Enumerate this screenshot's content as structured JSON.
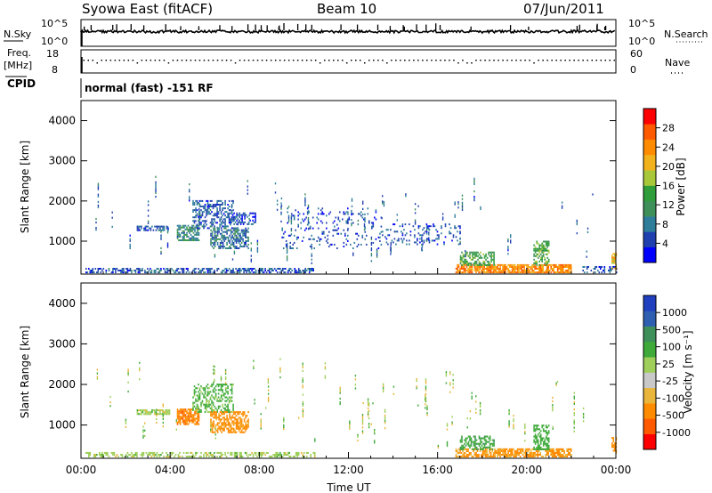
{
  "header": {
    "station": "Syowa East (fitACF)",
    "beam": "Beam 10",
    "date": "07/Jun/2011"
  },
  "top_strip": {
    "left_label": "N.Sky",
    "right_label": "N.Search",
    "left_ticks": [
      "10^5",
      "10^0"
    ],
    "right_ticks": [
      "10^5",
      "10^0"
    ]
  },
  "freq_strip": {
    "left_label_top": "Freq.",
    "left_label_bottom": "[MHz]",
    "left_ticks": [
      "18",
      "8"
    ],
    "right_label": "Nave",
    "right_ticks": [
      "60",
      "0"
    ]
  },
  "cpid": {
    "label": "CPID",
    "mode": "normal (fast) -151 RF"
  },
  "x_axis": {
    "label": "Time UT",
    "ticks": [
      "00:00",
      "04:00",
      "08:00",
      "12:00",
      "16:00",
      "20:00",
      "00:00"
    ]
  },
  "colors": {
    "power_scale": [
      "#0000ff",
      "#2040b0",
      "#2e7d9a",
      "#3f8f5a",
      "#2f9e3a",
      "#a8c83a",
      "#f2b21d",
      "#ff8c00",
      "#ff5a00",
      "#ff0000"
    ],
    "velocity_scale": [
      "#ff0000",
      "#ff5a00",
      "#ff8c00",
      "#e9b53a",
      "#c8c8c8",
      "#9fcf5a",
      "#3faa3a",
      "#3f8f5a",
      "#2e5fb0",
      "#2040c0"
    ]
  },
  "chart_data": [
    {
      "type": "heatmap",
      "name": "power",
      "ylabel": "Slant Range [km]",
      "xlabel": "",
      "x_range_hours": [
        0,
        24
      ],
      "ylim": [
        180,
        4500
      ],
      "y_ticks": [
        1000,
        2000,
        3000,
        4000
      ],
      "colorbar": {
        "label": "Power [dB]",
        "min": 0,
        "max": 32,
        "ticks": [
          "4",
          "8",
          "12",
          "16",
          "20",
          "24",
          "28"
        ]
      },
      "regions": [
        {
          "t0": 0.2,
          "t1": 10.5,
          "r0": 200,
          "r1": 320,
          "value": 6,
          "density": 0.55
        },
        {
          "t0": 2.5,
          "t1": 4.0,
          "r0": 1250,
          "r1": 1350,
          "value": 6,
          "density": 0.7
        },
        {
          "t0": 4.3,
          "t1": 5.3,
          "r0": 1000,
          "r1": 1400,
          "value": 10,
          "density": 0.75
        },
        {
          "t0": 5.0,
          "t1": 6.8,
          "r0": 1300,
          "r1": 2000,
          "value": 6,
          "density": 0.45
        },
        {
          "t0": 5.8,
          "t1": 7.5,
          "r0": 800,
          "r1": 1300,
          "value": 8,
          "density": 0.6
        },
        {
          "t0": 6.6,
          "t1": 7.8,
          "r0": 1400,
          "r1": 1700,
          "value": 5,
          "density": 0.45
        },
        {
          "t0": 9.0,
          "t1": 13.5,
          "r0": 800,
          "r1": 1800,
          "value": 5,
          "density": 0.12
        },
        {
          "t0": 13.5,
          "t1": 17.0,
          "r0": 900,
          "r1": 1400,
          "value": 5,
          "density": 0.18
        },
        {
          "t0": 16.8,
          "t1": 22.0,
          "r0": 200,
          "r1": 400,
          "value": 24,
          "density": 0.8
        },
        {
          "t0": 17.0,
          "t1": 18.5,
          "r0": 380,
          "r1": 700,
          "value": 14,
          "density": 0.55
        },
        {
          "t0": 20.3,
          "t1": 21.0,
          "r0": 380,
          "r1": 1000,
          "value": 14,
          "density": 0.6
        },
        {
          "t0": 22.5,
          "t1": 24.0,
          "r0": 200,
          "r1": 350,
          "value": 6,
          "density": 0.4
        },
        {
          "t0": 23.8,
          "t1": 24.0,
          "r0": 300,
          "r1": 700,
          "value": 20,
          "density": 0.7
        }
      ]
    },
    {
      "type": "heatmap",
      "name": "velocity",
      "ylabel": "Slant Range [km]",
      "xlabel": "Time UT",
      "x_range_hours": [
        0,
        24
      ],
      "ylim": [
        180,
        4500
      ],
      "y_ticks": [
        1000,
        2000,
        3000,
        4000
      ],
      "colorbar": {
        "label": "Velocity [m s⁻¹]",
        "ticks": [
          "1000",
          "500",
          "100",
          "25",
          "-25",
          "-100",
          "-500",
          "-1000"
        ]
      },
      "regions": [
        {
          "t0": 0.2,
          "t1": 10.5,
          "r0": 200,
          "r1": 320,
          "value": 0,
          "density": 0.5
        },
        {
          "t0": 2.5,
          "t1": 4.0,
          "r0": 1250,
          "r1": 1350,
          "value": 0,
          "density": 0.7
        },
        {
          "t0": 4.3,
          "t1": 5.3,
          "r0": 1000,
          "r1": 1400,
          "value": -400,
          "density": 0.75
        },
        {
          "t0": 5.0,
          "t1": 6.8,
          "r0": 1300,
          "r1": 2000,
          "value": 40,
          "density": 0.45
        },
        {
          "t0": 5.8,
          "t1": 7.5,
          "r0": 800,
          "r1": 1300,
          "value": -150,
          "density": 0.6
        },
        {
          "t0": 16.8,
          "t1": 22.0,
          "r0": 200,
          "r1": 400,
          "value": -120,
          "density": 0.7
        },
        {
          "t0": 17.0,
          "t1": 18.5,
          "r0": 380,
          "r1": 700,
          "value": 80,
          "density": 0.5
        },
        {
          "t0": 20.3,
          "t1": 21.0,
          "r0": 380,
          "r1": 1000,
          "value": 60,
          "density": 0.55
        },
        {
          "t0": 23.8,
          "t1": 24.0,
          "r0": 300,
          "r1": 700,
          "value": -200,
          "density": 0.6
        }
      ]
    }
  ]
}
